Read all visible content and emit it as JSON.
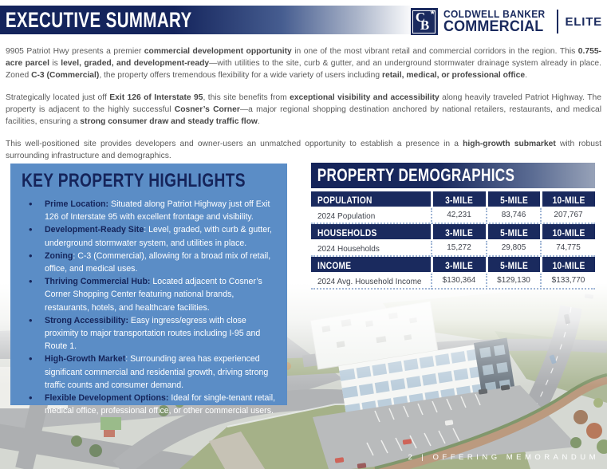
{
  "header": {
    "title": "EXECUTIVE SUMMARY"
  },
  "logo": {
    "monogram_c": "C",
    "monogram_b": "B",
    "star": "★",
    "line1": "COLDWELL BANKER",
    "line2": "COMMERCIAL",
    "suffix": "ELITE"
  },
  "intro": {
    "paragraphs": [
      {
        "segments": [
          {
            "t": "9905 Patriot Hwy presents a premier ",
            "b": false
          },
          {
            "t": "commercial development opportunity",
            "b": true
          },
          {
            "t": " in one of the most vibrant retail and commercial corridors in the region. This ",
            "b": false
          },
          {
            "t": "0.755-acre parcel",
            "b": true
          },
          {
            "t": " is ",
            "b": false
          },
          {
            "t": "level, graded, and development-ready",
            "b": true
          },
          {
            "t": "—with utilities to the site, curb & gutter, and an underground stormwater drainage system already in place. Zoned ",
            "b": false
          },
          {
            "t": "C-3 (Commercial)",
            "b": true
          },
          {
            "t": ", the property offers tremendous flexibility for a wide variety of users including ",
            "b": false
          },
          {
            "t": "retail, medical, or professional office",
            "b": true
          },
          {
            "t": ".",
            "b": false
          }
        ]
      },
      {
        "segments": [
          {
            "t": "Strategically located just off ",
            "b": false
          },
          {
            "t": "Exit 126 of Interstate 95",
            "b": true
          },
          {
            "t": ", this site benefits from ",
            "b": false
          },
          {
            "t": "exceptional visibility and accessibility",
            "b": true
          },
          {
            "t": " along heavily traveled Patriot Highway. The property is adjacent to the highly successful ",
            "b": false
          },
          {
            "t": "Cosner’s Corner",
            "b": true
          },
          {
            "t": "—a major regional shopping destination anchored by national retailers, restaurants, and medical facilities, ensuring a ",
            "b": false
          },
          {
            "t": "strong consumer draw and steady traffic flow",
            "b": true
          },
          {
            "t": ".",
            "b": false
          }
        ]
      },
      {
        "segments": [
          {
            "t": "This well-positioned site provides developers and owner-users an unmatched opportunity to establish a presence in a ",
            "b": false
          },
          {
            "t": "high-growth submarket",
            "b": true
          },
          {
            "t": " with robust surrounding infrastructure and demographics.",
            "b": false
          }
        ]
      }
    ]
  },
  "highlights": {
    "title": "KEY PROPERTY HIGHLIGHTS",
    "bullet": "•",
    "items": [
      {
        "lead": "Prime Location:",
        "rest": " Situated along Patriot Highway just off Exit 126 of Interstate 95 with excellent frontage and visibility."
      },
      {
        "lead": "Development-Ready Site",
        "rest": ": Level, graded, with curb & gutter, underground stormwater system, and utilities in place."
      },
      {
        "lead": "Zoning",
        "rest": ": C-3 (Commercial), allowing for a broad mix of retail, office, and medical uses."
      },
      {
        "lead": "Thriving Commercial Hub:",
        "rest": " Located adjacent to Cosner’s Corner Shopping Center featuring national brands, restaurants, hotels, and healthcare facilities."
      },
      {
        "lead": "Strong Accessibility:",
        "rest": " Easy ingress/egress with close proximity to major transportation routes including I-95 and Route 1."
      },
      {
        "lead": "High-Growth Market",
        "rest": ": Surrounding area has experienced significant commercial and residential growth, driving strong traffic counts and consumer demand."
      },
      {
        "lead": "Flexible Development Options:",
        "rest": " Ideal for single-tenant retail, medical office, professional office, or other commercial users."
      }
    ]
  },
  "demographics": {
    "title": "PROPERTY DEMOGRAPHICS",
    "rows": [
      {
        "type": "header",
        "label": "POPULATION",
        "c1": "3-MILE",
        "c2": "5-MILE",
        "c3": "10-MILE"
      },
      {
        "type": "data",
        "label": "2024 Population",
        "c1": "42,231",
        "c2": "83,746",
        "c3": "207,767"
      },
      {
        "type": "header",
        "label": "HOUSEHOLDS",
        "c1": "3-MILE",
        "c2": "5-MILE",
        "c3": "10-MILE"
      },
      {
        "type": "data",
        "label": "2024 Households",
        "c1": "15,272",
        "c2": "29,805",
        "c3": "74,775"
      },
      {
        "type": "header",
        "label": "INCOME",
        "c1": "3-MILE",
        "c2": "5-MILE",
        "c3": "10-MILE"
      },
      {
        "type": "data",
        "label": "2024 Avg. Household Income",
        "c1": "$130,364",
        "c2": "$129,130",
        "c3": "$133,770"
      }
    ]
  },
  "footer": {
    "text": "2 | OFFERING MEMORANDUM"
  },
  "colors": {
    "navy": "#1a2a5e",
    "panel_blue": "#5b8dc6",
    "highlight_text": "#15245a",
    "body_text": "#5a5a5a",
    "table_border": "#9fb5d5"
  }
}
